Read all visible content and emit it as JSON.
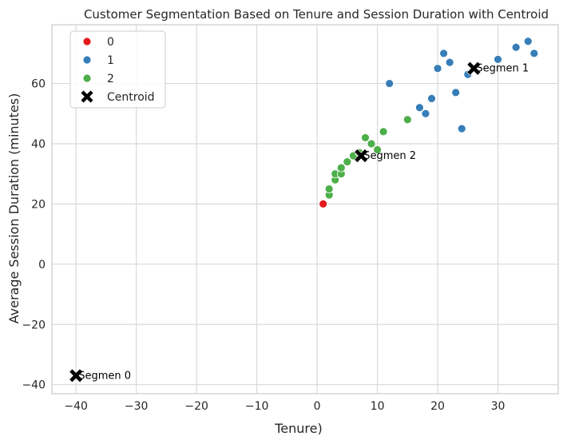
{
  "chart_data": {
    "type": "scatter",
    "title": "Customer Segmentation Based on Tenure and Session Duration with Centroid",
    "xlabel": "Tenure)",
    "ylabel": "Average Session Duration (minutes)",
    "xlim": [
      -44,
      40
    ],
    "ylim": [
      -43,
      79.5
    ],
    "xticks": [
      -40,
      -30,
      -20,
      -10,
      0,
      10,
      20,
      30
    ],
    "yticks": [
      -40,
      -20,
      0,
      20,
      40,
      60
    ],
    "xtick_labels": [
      "−40",
      "−30",
      "−20",
      "−10",
      "0",
      "10",
      "20",
      "30"
    ],
    "ytick_labels": [
      "−40",
      "−20",
      "0",
      "20",
      "40",
      "60"
    ],
    "grid": true,
    "legend_position": "top-left",
    "series": [
      {
        "name": "0",
        "color": "#e41a1c",
        "points": [
          [
            1,
            20
          ]
        ]
      },
      {
        "name": "1",
        "color": "#377eb8",
        "points": [
          [
            12,
            60
          ],
          [
            17,
            52
          ],
          [
            18,
            50
          ],
          [
            19,
            55
          ],
          [
            20,
            65
          ],
          [
            21,
            70
          ],
          [
            22,
            67
          ],
          [
            23,
            57
          ],
          [
            24,
            45
          ],
          [
            25,
            63
          ],
          [
            30,
            68
          ],
          [
            33,
            72
          ],
          [
            35,
            74
          ],
          [
            36,
            70
          ]
        ]
      },
      {
        "name": "2",
        "color": "#4daf4a",
        "points": [
          [
            2,
            23
          ],
          [
            2,
            25
          ],
          [
            3,
            28
          ],
          [
            3,
            30
          ],
          [
            4,
            30
          ],
          [
            4,
            32
          ],
          [
            5,
            34
          ],
          [
            6,
            36
          ],
          [
            7,
            37
          ],
          [
            8,
            42
          ],
          [
            9,
            40
          ],
          [
            10,
            38
          ],
          [
            11,
            44
          ],
          [
            15,
            48
          ]
        ]
      }
    ],
    "centroids": {
      "name": "Centroid",
      "color": "#000000",
      "points": [
        {
          "label": "Segmen 0",
          "x": -40,
          "y": -37
        },
        {
          "label": "Segmen 1",
          "x": 26,
          "y": 65
        },
        {
          "label": "Segmen 2",
          "x": 7.3,
          "y": 36
        }
      ]
    }
  }
}
